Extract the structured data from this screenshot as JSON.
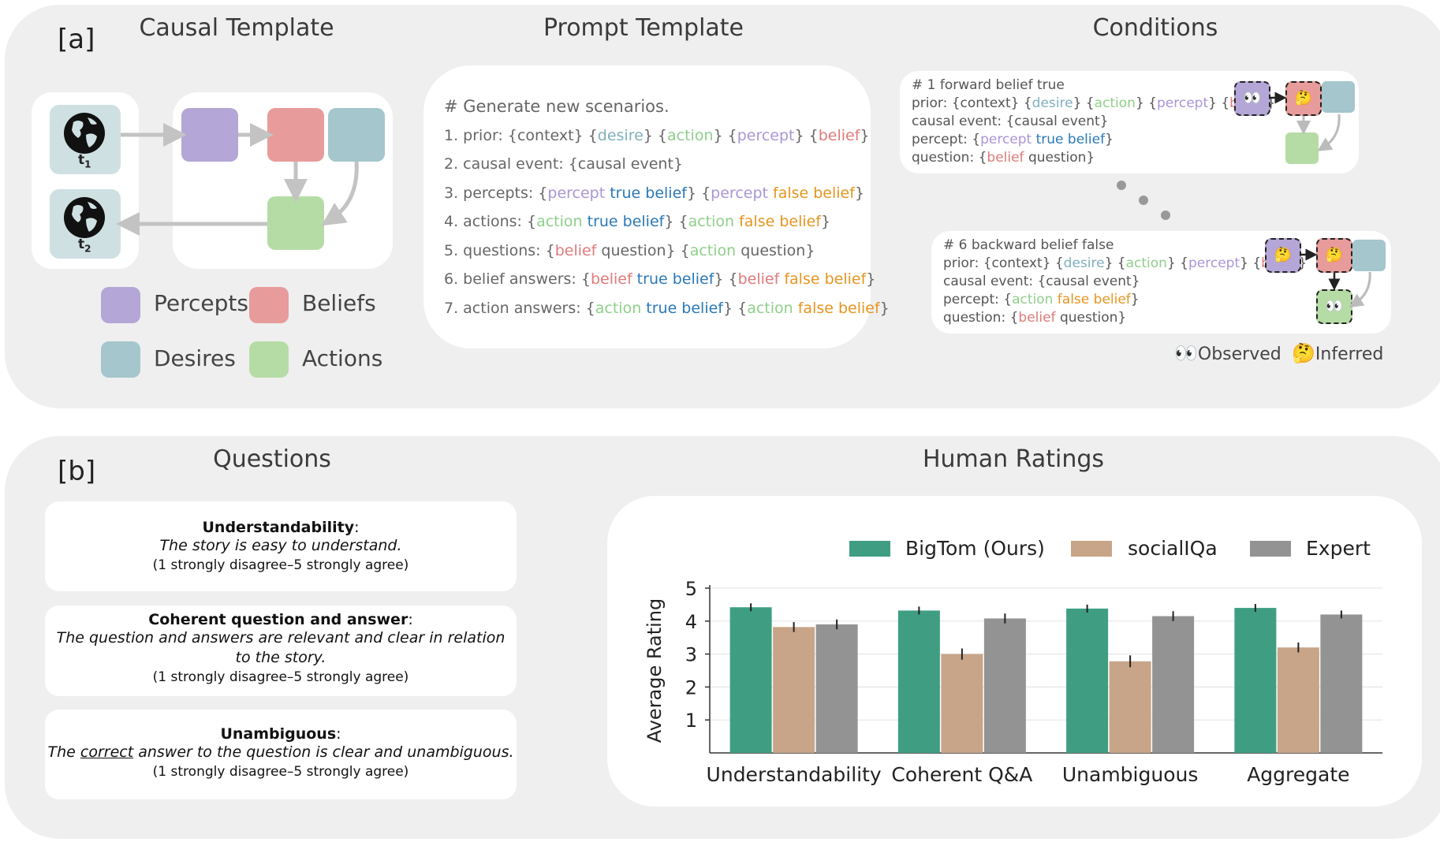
{
  "panel_a": {
    "tag": "[a]",
    "causal_template": {
      "title": "Causal Template",
      "t1": "t",
      "t1_sub": "1",
      "t2": "t",
      "t2_sub": "2",
      "legend": [
        {
          "label": "Percepts",
          "color": "#b4a6d6"
        },
        {
          "label": "Beliefs",
          "color": "#e89b9b"
        },
        {
          "label": "Desires",
          "color": "#a4c6cc"
        },
        {
          "label": "Actions",
          "color": "#b6dca6"
        }
      ]
    },
    "prompt_template": {
      "title": "Prompt Template",
      "header": "# Generate new scenarios.",
      "lines": {
        "l1": {
          "n": "1. prior: {context} {",
          "desire": "desire",
          "s1": "} {",
          "action": "action",
          "s2": "} {",
          "percept": "percept",
          "s3": "} {",
          "belief": "belief",
          "end": "}"
        },
        "l2": {
          "text": "2. causal event: {causal event}"
        },
        "l3": {
          "n": "3. percepts: {",
          "percept1": "percept",
          "tb": " true belief",
          "s1": "} {",
          "percept2": "percept",
          "fb": " false belief",
          "end": "}"
        },
        "l4": {
          "n": "4. actions: {",
          "action1": "action",
          "tb": " true belief",
          "s1": "} {",
          "action2": "action",
          "fb": " false belief",
          "end": "}"
        },
        "l5": {
          "n": "5. questions: {",
          "belief": "belief",
          "q1": " question} {",
          "action": "action",
          "q2": " question}"
        },
        "l6": {
          "n": "6. belief answers: {",
          "belief1": "belief",
          "tb": " true belief",
          "s1": "} {",
          "belief2": "belief",
          "fb": " false belief",
          "end": "}"
        },
        "l7": {
          "n": "7. action answers: {",
          "action1": "action",
          "tb": " true belief",
          "s1": "} {",
          "action2": "action",
          "fb": " false belief",
          "end": "}"
        }
      }
    },
    "conditions": {
      "title": "Conditions",
      "c1": {
        "header": "# 1 forward belief true",
        "prior": "prior: {context} {",
        "desire": "desire",
        "s1": "} {",
        "action": "action",
        "s2": "} {",
        "percept": "percept",
        "s3": "} {",
        "belief": "belief",
        "end": "}",
        "causal": "causal event: {causal event}",
        "percept_pre": "percept: {",
        "percept_word": "percept",
        "percept_tb": " true belief",
        "percept_end": "}",
        "question_pre": "question: {",
        "question_belief": "belief",
        "question_end": " question}"
      },
      "c6": {
        "header": "# 6 backward belief false",
        "prior": "prior: {context} {",
        "desire": "desire",
        "s1": "} {",
        "action": "action",
        "s2": "} {",
        "percept": "percept",
        "s3": "} {",
        "belief": "belief",
        "end": "}",
        "causal": "causal event: {causal event}",
        "percept_pre": "percept: {",
        "percept_word": "action",
        "percept_fb": " false belief",
        "percept_end": "}",
        "question_pre": "question: {",
        "question_belief": "belief",
        "question_end": " question}"
      },
      "legend_observed": "Observed",
      "legend_inferred": "Inferred",
      "observed_glyph": "👀",
      "inferred_glyph": "🤔"
    }
  },
  "panel_b": {
    "tag": "[b]",
    "questions": {
      "title": "Questions",
      "items": [
        {
          "title": "Understandability",
          "colon": ":",
          "statement": "The story is easy to understand.",
          "scale": "(1 strongly disagree–5 strongly agree)"
        },
        {
          "title": "Coherent question and answer",
          "colon": ":",
          "statement": "The question and answers are relevant and clear in relation to the story.",
          "scale": "(1 strongly disagree–5 strongly agree)"
        },
        {
          "title": "Unambiguous",
          "colon": ":",
          "statement_pre": "The ",
          "statement_u": "correct",
          "statement_post": " answer to the question is clear and unambiguous.",
          "scale": "(1 strongly disagree–5 strongly agree)"
        }
      ]
    },
    "ratings_title": "Human Ratings"
  },
  "chart_data": {
    "type": "bar",
    "title": "Human Ratings",
    "xlabel": "",
    "ylabel": "Average Rating",
    "categories": [
      "Understandability",
      "Coherent Q&A",
      "Unambiguous",
      "Aggregate"
    ],
    "series": [
      {
        "name": "BigTom (Ours)",
        "values": [
          4.42,
          4.32,
          4.38,
          4.4
        ],
        "err": [
          0.12,
          0.12,
          0.12,
          0.12
        ],
        "color": "#3f9e82"
      },
      {
        "name": "socialIQa",
        "values": [
          3.82,
          3.0,
          2.78,
          3.2
        ],
        "err": [
          0.15,
          0.17,
          0.18,
          0.15
        ],
        "color": "#c8a588"
      },
      {
        "name": "Expert",
        "values": [
          3.9,
          4.08,
          4.15,
          4.2
        ],
        "err": [
          0.15,
          0.15,
          0.15,
          0.12
        ],
        "color": "#939393"
      }
    ],
    "yticks": [
      1,
      2,
      3,
      4,
      5
    ],
    "ylim": [
      0,
      5
    ],
    "grid": true,
    "legend": "top"
  }
}
